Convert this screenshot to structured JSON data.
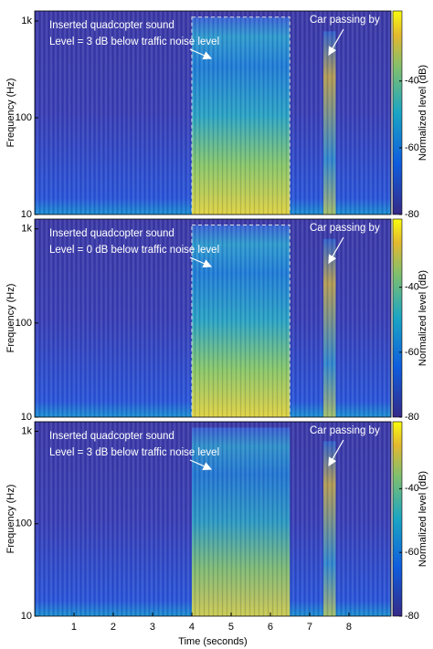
{
  "chart_data": [
    {
      "type": "spectrogram",
      "ylabel": "Frequency (Hz)",
      "colorbar_label": "Normalized level (dB)",
      "xlim": [
        0,
        9.07
      ],
      "ylim": [
        10,
        1270
      ],
      "log_y": true,
      "yticks": [
        10,
        100,
        {
          "value": 1000,
          "label": "1k"
        }
      ],
      "clim": [
        -80,
        -19
      ],
      "cticks": [
        -80,
        -60,
        -40
      ],
      "annotations": [
        "Inserted quadcopter sound",
        "Level = 3 dB below traffic noise level",
        "Car passing by"
      ]
    },
    {
      "type": "spectrogram",
      "ylabel": "Frequency (Hz)",
      "colorbar_label": "Normalized level (dB)",
      "xlim": [
        0,
        9.07
      ],
      "ylim": [
        10,
        1270
      ],
      "log_y": true,
      "yticks": [
        10,
        100,
        {
          "value": 1000,
          "label": "1k"
        }
      ],
      "clim": [
        -80,
        -19
      ],
      "cticks": [
        -80,
        -60,
        -40
      ],
      "annotations": [
        "Inserted quadcopter sound",
        "Level = 0 dB below traffic noise level",
        "Car passing by"
      ]
    },
    {
      "type": "spectrogram",
      "ylabel": "Frequency (Hz)",
      "colorbar_label": "Normalized level (dB)",
      "xlabel": "Time (seconds)",
      "xlim": [
        0,
        9.07
      ],
      "xticks": [
        1,
        2,
        3,
        4,
        5,
        6,
        7,
        8
      ],
      "ylim": [
        10,
        1270
      ],
      "log_y": true,
      "yticks": [
        10,
        100,
        {
          "value": 1000,
          "label": "1k"
        }
      ],
      "clim": [
        -80,
        -19
      ],
      "cticks": [
        -80,
        -60,
        -40
      ],
      "annotations": [
        "Inserted quadcopter sound",
        "Level = 3 dB below traffic noise level",
        "Car passing by"
      ]
    }
  ]
}
